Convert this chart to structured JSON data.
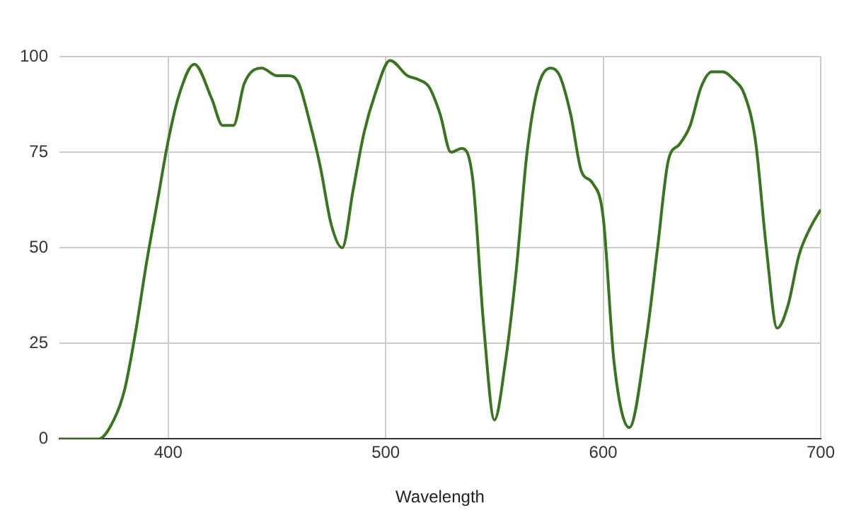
{
  "chart_data": {
    "type": "line",
    "xlabel": "Wavelength",
    "x": [
      350,
      360,
      368,
      375,
      380,
      385,
      390,
      395,
      400,
      405,
      412,
      420,
      425,
      430,
      435,
      443,
      450,
      455,
      460,
      465,
      470,
      475,
      480,
      485,
      490,
      495,
      502,
      510,
      515,
      520,
      525,
      530,
      535,
      540,
      545,
      550,
      555,
      560,
      565,
      570,
      576,
      580,
      585,
      590,
      595,
      600,
      605,
      612,
      620,
      625,
      630,
      635,
      640,
      645,
      650,
      655,
      660,
      665,
      670,
      675,
      680,
      685,
      690,
      695,
      700
    ],
    "series": [
      {
        "color": "#38761d",
        "values": [
          0,
          0,
          0,
          5,
          13,
          28,
          46,
          62,
          78,
          90,
          98,
          89,
          82,
          82,
          93,
          97,
          95,
          95,
          93,
          83,
          71,
          56,
          50,
          65,
          80,
          90,
          99,
          95,
          94,
          92,
          85,
          75,
          76,
          68,
          30,
          5,
          20,
          44,
          75,
          92,
          97,
          95,
          85,
          70,
          67,
          58,
          20,
          3,
          27,
          50,
          73,
          77,
          82,
          92,
          96,
          96,
          94,
          90,
          78,
          50,
          29,
          35,
          48,
          55,
          60
        ]
      }
    ],
    "xlim": [
      350,
      700
    ],
    "xticks": [
      400,
      500,
      600,
      700
    ],
    "ylim": [
      0,
      100
    ],
    "yticks": [
      0,
      25,
      50,
      75,
      100
    ],
    "grid": true,
    "legend": false,
    "marker": "none",
    "line_style": "solid"
  }
}
